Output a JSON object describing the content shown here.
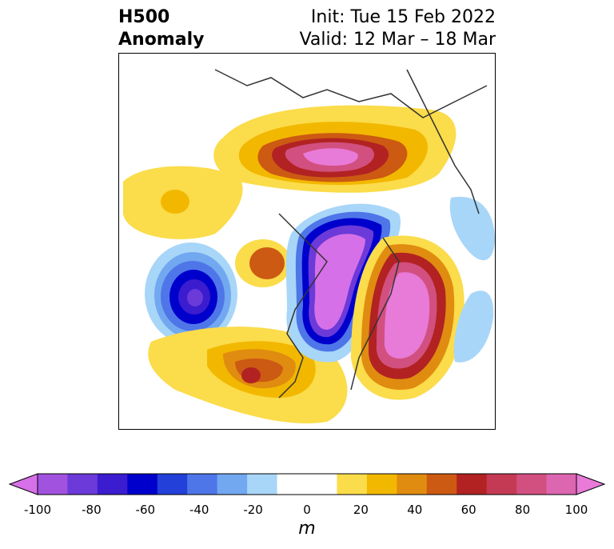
{
  "title": {
    "left_line1": "H500",
    "left_line2": "Anomaly",
    "right_line1": "Init: Tue 15 Feb 2022",
    "right_line2": "Valid: 12 Mar – 18 Mar"
  },
  "colorbar": {
    "units": "m",
    "ticks": [
      "-100",
      "-80",
      "-60",
      "-40",
      "-20",
      "0",
      "20",
      "40",
      "60",
      "80",
      "100"
    ],
    "colors": [
      "#d670e8",
      "#a152de",
      "#6b3ad8",
      "#3b1ccf",
      "#0000cc",
      "#2340d8",
      "#4e76e8",
      "#72a8f0",
      "#a8d6f8",
      "#ffffff",
      "#ffffff",
      "#fbdc4a",
      "#f2b800",
      "#e08c10",
      "#cc5a12",
      "#b22222",
      "#c43a54",
      "#d2507f",
      "#dc66b0",
      "#e87ad8"
    ]
  },
  "map": {
    "projection": "polar-stereographic",
    "region": "northern-hemisphere"
  }
}
